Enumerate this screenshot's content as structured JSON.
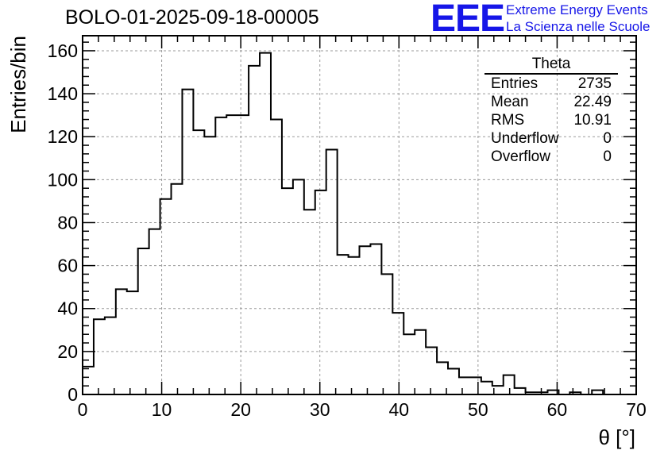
{
  "chart_data": {
    "type": "bar",
    "title": "BOLO-01-2025-09-18-00005",
    "xlabel": "θ [°]",
    "ylabel": "Entries/bin",
    "xlim": [
      0,
      70
    ],
    "ylim": [
      0,
      167
    ],
    "xticks": [
      0,
      10,
      20,
      30,
      40,
      50,
      60,
      70
    ],
    "yticks": [
      0,
      20,
      40,
      60,
      80,
      100,
      120,
      140,
      160
    ],
    "grid": true,
    "bin_width": 1.4,
    "bin_start": 0,
    "series": [
      {
        "name": "Theta",
        "values": [
          13,
          35,
          36,
          49,
          48,
          68,
          77,
          91,
          98,
          142,
          123,
          120,
          129,
          130,
          130,
          153,
          159,
          128,
          96,
          100,
          86,
          95,
          114,
          65,
          64,
          69,
          70,
          56,
          38,
          28,
          30,
          22,
          15,
          12,
          8,
          8,
          6,
          4,
          9,
          3,
          1,
          1,
          2,
          0,
          1,
          0,
          2,
          0,
          0,
          0
        ]
      }
    ],
    "stats_box": {
      "title": "Theta",
      "placement": "top-right",
      "rows": [
        {
          "label": "Entries",
          "value": "2735"
        },
        {
          "label": "Mean",
          "value": "22.49"
        },
        {
          "label": "RMS",
          "value": "10.91"
        },
        {
          "label": "Underflow",
          "value": "0"
        },
        {
          "label": "Overflow",
          "value": "0"
        }
      ]
    }
  },
  "logo": {
    "mark": "EEE",
    "line1": "Extreme Energy Events",
    "line2": "La Scienza nelle Scuole",
    "color": "#1616e8"
  }
}
